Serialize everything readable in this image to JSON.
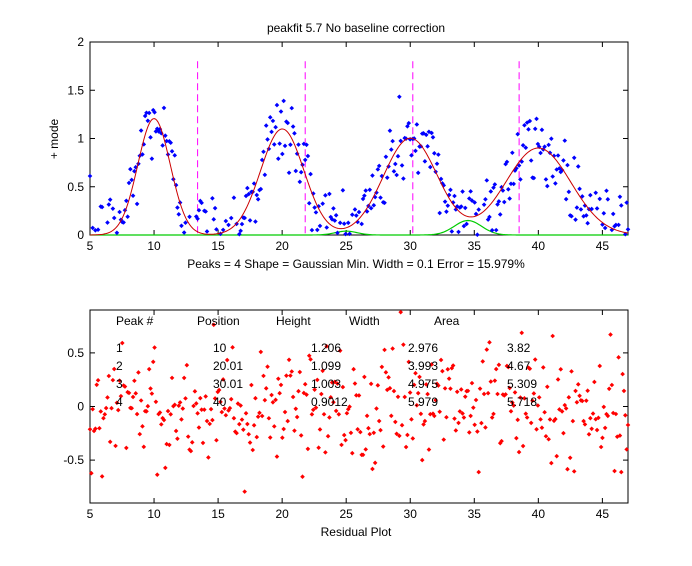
{
  "chart_data": [
    {
      "type": "scatter",
      "title": "peakfit 5.7    No baseline correction",
      "xlabel": "",
      "ylabel": "+ mode",
      "xlim": [
        5,
        47
      ],
      "ylim": [
        0,
        2
      ],
      "xticks": [
        5,
        10,
        15,
        20,
        25,
        30,
        35,
        40,
        45
      ],
      "yticks": [
        0,
        0.5,
        1,
        1.5,
        2
      ],
      "ytick_labels": [
        "0",
        "0.5",
        "1",
        "1.5",
        "2"
      ],
      "info_line": "Peaks = 4     Shape = Gaussian     Min. Width = 0.1     Error = 15.979%",
      "peak_markers_x": [
        13.4,
        21.8,
        30.2,
        38.5
      ],
      "peaks": [
        {
          "position": 10,
          "height": 1.206,
          "width": 2.976
        },
        {
          "position": 20.01,
          "height": 1.099,
          "width": 3.993
        },
        {
          "position": 30.01,
          "height": 1.003,
          "width": 4.975
        },
        {
          "position": 40,
          "height": 0.9012,
          "width": 5.979
        }
      ],
      "component_curves": [
        {
          "position": 25,
          "height": 0.04,
          "width": 2.0
        },
        {
          "position": 34.5,
          "height": 0.15,
          "width": 2.5
        }
      ],
      "x_range_points": [
        5,
        47
      ],
      "n_points": 401,
      "noise_amplitude": 0.45,
      "colors": {
        "data": "#0000ff",
        "fit": "#cc0000",
        "component": "#00cc00",
        "marker": "#ff00ff"
      }
    },
    {
      "type": "scatter",
      "title": "",
      "xlabel": "Residual Plot",
      "ylabel": "",
      "xlim": [
        5,
        47
      ],
      "ylim": [
        -0.9,
        0.9
      ],
      "xticks": [
        5,
        10,
        15,
        20,
        25,
        30,
        35,
        40,
        45
      ],
      "yticks": [
        -0.5,
        0,
        0.5
      ],
      "ytick_labels": [
        "-0.5",
        "0",
        "0.5"
      ],
      "n_points": 401,
      "noise_amplitude": 0.9,
      "color": "#ff0000"
    }
  ],
  "results_table": {
    "headers": [
      "Peak #",
      "Position",
      "Height",
      "Width",
      "Area"
    ],
    "rows": [
      [
        "1",
        "10",
        "1.206",
        "2.976",
        "3.82"
      ],
      [
        "2",
        "20.01",
        "1.099",
        "3.993",
        "4.67"
      ],
      [
        "3",
        "30.01",
        "1.003",
        "4.975",
        "5.309"
      ],
      [
        "4",
        "40",
        "0.9012",
        "5.979",
        "5.718"
      ]
    ]
  }
}
